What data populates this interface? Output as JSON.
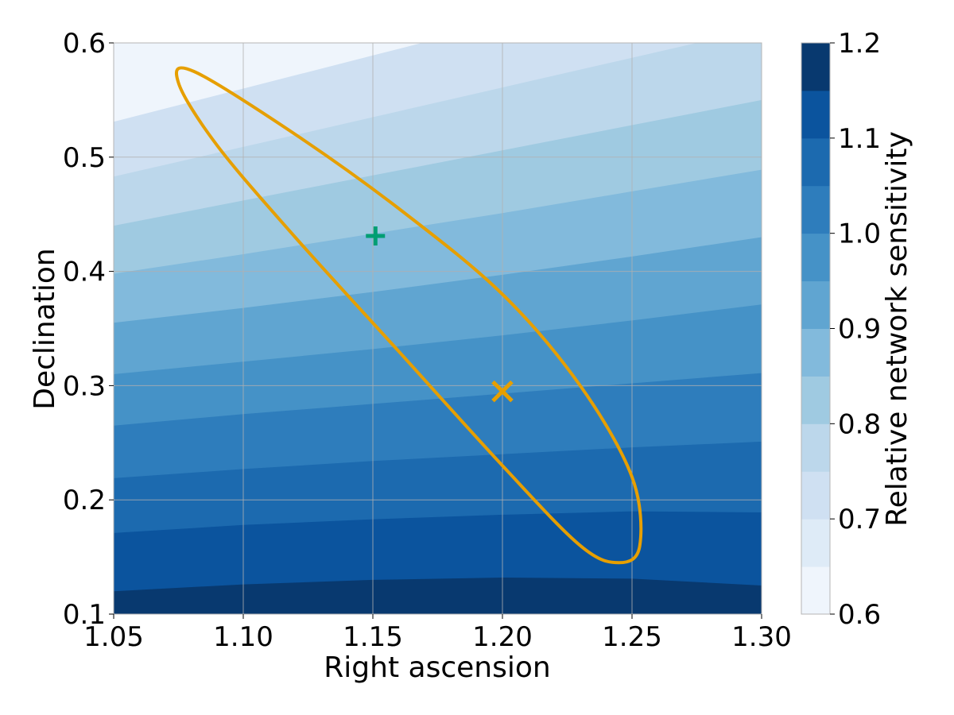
{
  "chart_data": {
    "type": "heatmap",
    "title": "",
    "xlabel": "Right ascension",
    "ylabel": "Declination",
    "xlim": [
      1.05,
      1.3
    ],
    "ylim": [
      0.1,
      0.6
    ],
    "x_ticks": [
      "1.05",
      "1.10",
      "1.15",
      "1.20",
      "1.25",
      "1.30"
    ],
    "y_ticks": [
      "0.1",
      "0.2",
      "0.3",
      "0.4",
      "0.5",
      "0.6"
    ],
    "grid": true,
    "colorbar": {
      "label": "Relative network sensitivity",
      "range": [
        0.6,
        1.2
      ],
      "ticks": [
        "0.6",
        "0.7",
        "0.8",
        "0.9",
        "1.0",
        "1.1",
        "1.2"
      ],
      "levels": [
        0.6,
        0.65,
        0.7,
        0.75,
        0.8,
        0.85,
        0.9,
        0.95,
        1.0,
        1.05,
        1.1,
        1.15,
        1.2
      ],
      "colors": [
        "#eff5fc",
        "#deebf7",
        "#cfe0f2",
        "#bcd7eb",
        "#9fcae1",
        "#82badc",
        "#60a5d1",
        "#4592c7",
        "#2e7dbc",
        "#1c6aaf",
        "#0b549e",
        "#08396f"
      ]
    },
    "contour_boundaries_declination_at_ra": {
      "ra": [
        1.05,
        1.1,
        1.15,
        1.2,
        1.25,
        1.3
      ],
      "lines": [
        {
          "level": 0.7,
          "dec": [
            0.531,
            0.56,
            0.589,
            0.618,
            0.647,
            0.676
          ]
        },
        {
          "level": 0.75,
          "dec": [
            0.483,
            0.509,
            0.535,
            0.561,
            0.587,
            0.613
          ]
        },
        {
          "level": 0.8,
          "dec": [
            0.44,
            0.462,
            0.484,
            0.506,
            0.528,
            0.55
          ]
        },
        {
          "level": 0.85,
          "dec": [
            0.398,
            0.415,
            0.433,
            0.451,
            0.47,
            0.489
          ]
        },
        {
          "level": 0.9,
          "dec": [
            0.355,
            0.368,
            0.382,
            0.397,
            0.413,
            0.43
          ]
        },
        {
          "level": 0.95,
          "dec": [
            0.31,
            0.321,
            0.332,
            0.344,
            0.357,
            0.371
          ]
        },
        {
          "level": 1.0,
          "dec": [
            0.265,
            0.275,
            0.284,
            0.293,
            0.302,
            0.311
          ]
        },
        {
          "level": 1.05,
          "dec": [
            0.219,
            0.227,
            0.234,
            0.24,
            0.246,
            0.251
          ]
        },
        {
          "level": 1.1,
          "dec": [
            0.171,
            0.178,
            0.183,
            0.187,
            0.19,
            0.189
          ]
        },
        {
          "level": 1.15,
          "dec": [
            0.12,
            0.126,
            0.13,
            0.132,
            0.131,
            0.125
          ]
        }
      ]
    },
    "ellipse": {
      "color": "#e69f00",
      "points": [
        [
          1.081,
          0.575
        ],
        [
          1.12,
          0.52
        ],
        [
          1.16,
          0.455
        ],
        [
          1.2,
          0.38
        ],
        [
          1.23,
          0.3
        ],
        [
          1.25,
          0.22
        ],
        [
          1.253,
          0.16
        ],
        [
          1.245,
          0.145
        ],
        [
          1.23,
          0.16
        ],
        [
          1.2,
          0.23
        ],
        [
          1.16,
          0.33
        ],
        [
          1.12,
          0.43
        ],
        [
          1.09,
          0.51
        ],
        [
          1.075,
          0.565
        ],
        [
          1.081,
          0.575
        ]
      ]
    },
    "markers": [
      {
        "name": "plus",
        "symbol": "+",
        "x": 1.151,
        "y": 0.431,
        "color": "#009e73"
      },
      {
        "name": "cross",
        "symbol": "x",
        "x": 1.2,
        "y": 0.295,
        "color": "#e69f00"
      }
    ]
  }
}
